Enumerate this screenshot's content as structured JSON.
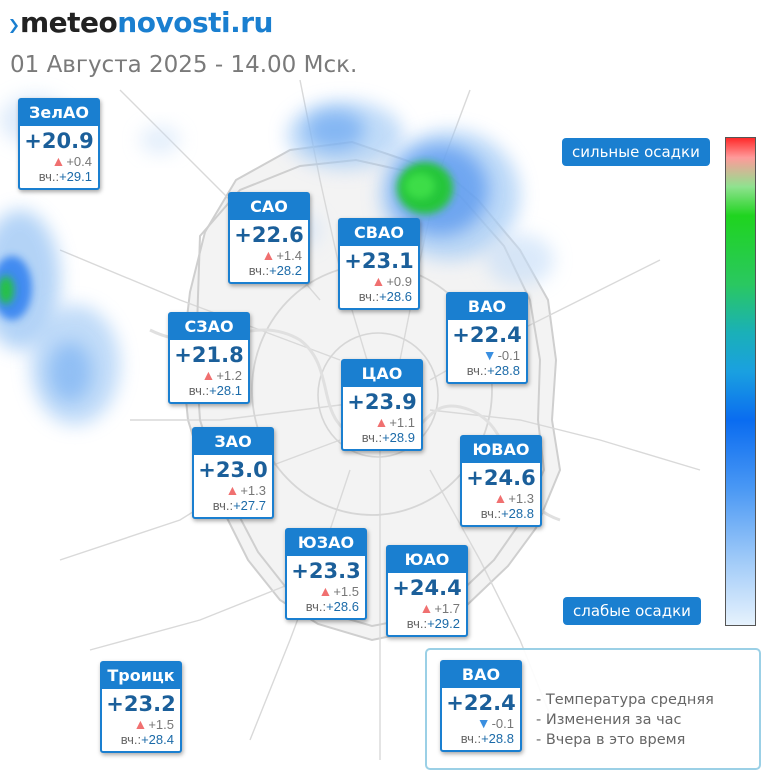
{
  "header": {
    "logo_part1": "meteo",
    "logo_part2": "novosti.ru",
    "subtitle": "01 Августа 2025 - 14.00 Мск."
  },
  "districts": [
    {
      "name": "ЗелАО",
      "temp": "+20.9",
      "trend": "up",
      "delta": "+0.4",
      "yesterday_label": "вч.:",
      "yesterday": "+29.1"
    },
    {
      "name": "САО",
      "temp": "+22.6",
      "trend": "up",
      "delta": "+1.4",
      "yesterday_label": "вч.:",
      "yesterday": "+28.2"
    },
    {
      "name": "СВАО",
      "temp": "+23.1",
      "trend": "up",
      "delta": "+0.9",
      "yesterday_label": "вч.:",
      "yesterday": "+28.6"
    },
    {
      "name": "ВАО",
      "temp": "+22.4",
      "trend": "down",
      "delta": "-0.1",
      "yesterday_label": "вч.:",
      "yesterday": "+28.8"
    },
    {
      "name": "СЗАО",
      "temp": "+21.8",
      "trend": "up",
      "delta": "+1.2",
      "yesterday_label": "вч.:",
      "yesterday": "+28.1"
    },
    {
      "name": "ЦАО",
      "temp": "+23.9",
      "trend": "up",
      "delta": "+1.1",
      "yesterday_label": "вч.:",
      "yesterday": "+28.9"
    },
    {
      "name": "ЗАО",
      "temp": "+23.0",
      "trend": "up",
      "delta": "+1.3",
      "yesterday_label": "вч.:",
      "yesterday": "+27.7"
    },
    {
      "name": "ЮВАО",
      "temp": "+24.6",
      "trend": "up",
      "delta": "+1.3",
      "yesterday_label": "вч.:",
      "yesterday": "+28.8"
    },
    {
      "name": "ЮЗАО",
      "temp": "+23.3",
      "trend": "up",
      "delta": "+1.5",
      "yesterday_label": "вч.:",
      "yesterday": "+28.6"
    },
    {
      "name": "ЮАО",
      "temp": "+24.4",
      "trend": "up",
      "delta": "+1.7",
      "yesterday_label": "вч.:",
      "yesterday": "+29.2"
    },
    {
      "name": "Троицк",
      "temp": "+23.2",
      "trend": "up",
      "delta": "+1.5",
      "yesterday_label": "вч.:",
      "yesterday": "+28.4"
    }
  ],
  "colorbar": {
    "top_label": "сильные осадки",
    "bottom_label": "слабые осадки"
  },
  "legend": {
    "sample": {
      "name": "ВАО",
      "temp": "+22.4",
      "trend": "down",
      "delta": "-0.1",
      "yesterday_label": "вч.:",
      "yesterday": "+28.8"
    },
    "lines": [
      "- Температура средняя",
      "- Изменения за час",
      "- Вчера в это время"
    ]
  },
  "icons": {
    "up": "triangle-up-icon",
    "down": "triangle-down-icon"
  },
  "colors": {
    "accent": "#1a7fd0",
    "trend_up": "#f07070",
    "trend_down": "#3a8fe0",
    "temp_text": "#1b5f9a"
  }
}
